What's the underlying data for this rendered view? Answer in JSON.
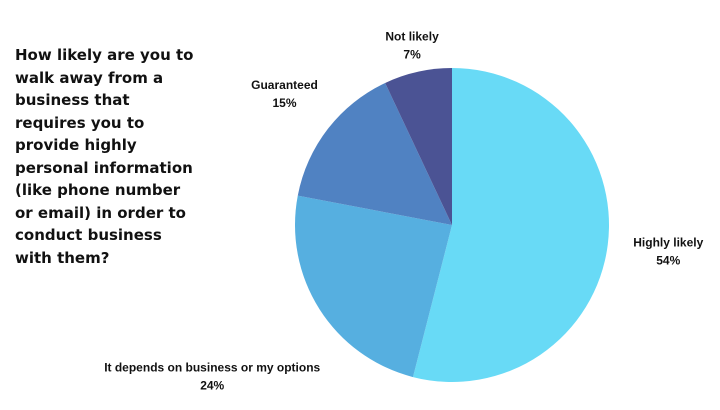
{
  "chart_data": {
    "type": "pie",
    "title": "How likely are you to walk away from a business that requires you to provide highly personal information (like phone number or email) in order to conduct business with them?",
    "categories": [
      "Highly likely",
      "It depends on business or my options",
      "Guaranteed",
      "Not likely"
    ],
    "values": [
      54,
      24,
      15,
      7
    ],
    "value_labels": [
      "54%",
      "24%",
      "15%",
      "7%"
    ],
    "colors": [
      "#68daf6",
      "#56afe0",
      "#5082c2",
      "#4b5394"
    ]
  }
}
